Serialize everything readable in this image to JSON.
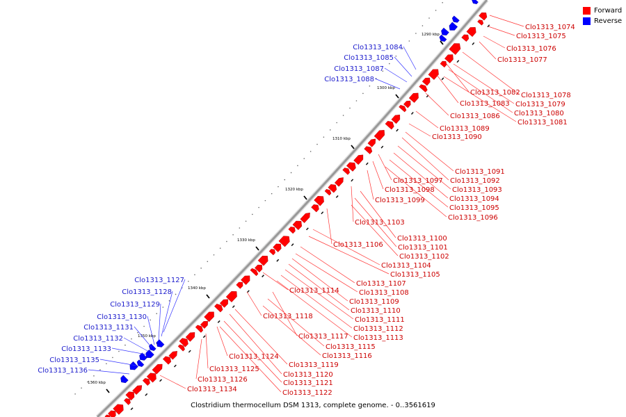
{
  "colors": {
    "forward": "#ff0000",
    "reverse": "#0000ff",
    "backbone": "#999999",
    "label_forward": "#cc0000",
    "label_reverse": "#1a1acc"
  },
  "legend": {
    "forward": "Forward",
    "reverse": "Reverse"
  },
  "caption": "Clostridium thermocellum DSM 1313, complete genome. - 0..3561619",
  "ticks": [
    "1290 kbp",
    "1300 kbp",
    "1310 kbp",
    "1320 kbp",
    "1330 kbp",
    "1340 kbp",
    "1350 kbp",
    "1360 kbp"
  ],
  "labels": {
    "forward": [
      "Clo1313_1074",
      "Clo1313_1075",
      "Clo1313_1076",
      "Clo1313_1077",
      "Clo1313_1078",
      "Clo1313_1079",
      "Clo1313_1080",
      "Clo1313_1081",
      "Clo1313_1082",
      "Clo1313_1083",
      "Clo1313_1086",
      "Clo1313_1089",
      "Clo1313_1090",
      "Clo1313_1091",
      "Clo1313_1092",
      "Clo1313_1093",
      "Clo1313_1094",
      "Clo1313_1095",
      "Clo1313_1096",
      "Clo1313_1097",
      "Clo1313_1098",
      "Clo1313_1099",
      "Clo1313_1103",
      "Clo1313_1100",
      "Clo1313_1101",
      "Clo1313_1102",
      "Clo1313_1106",
      "Clo1313_1104",
      "Clo1313_1105",
      "Clo1313_1107",
      "Clo1313_1108",
      "Clo1313_1109",
      "Clo1313_1110",
      "Clo1313_1111",
      "Clo1313_1112",
      "Clo1313_1113",
      "Clo1313_1114",
      "Clo1313_1118",
      "Clo1313_1117",
      "Clo1313_1115",
      "Clo1313_1116",
      "Clo1313_1124",
      "Clo1313_1119",
      "Clo1313_1125",
      "Clo1313_1120",
      "Clo1313_1126",
      "Clo1313_1121",
      "Clo1313_1134",
      "Clo1313_1122"
    ],
    "reverse": [
      "Clo1313_1084",
      "Clo1313_1085",
      "Clo1313_1087",
      "Clo1313_1088",
      "Clo1313_1127",
      "Clo1313_1128",
      "Clo1313_1129",
      "Clo1313_1130",
      "Clo1313_1131",
      "Clo1313_1132",
      "Clo1313_1133",
      "Clo1313_1135",
      "Clo1313_1136"
    ]
  }
}
